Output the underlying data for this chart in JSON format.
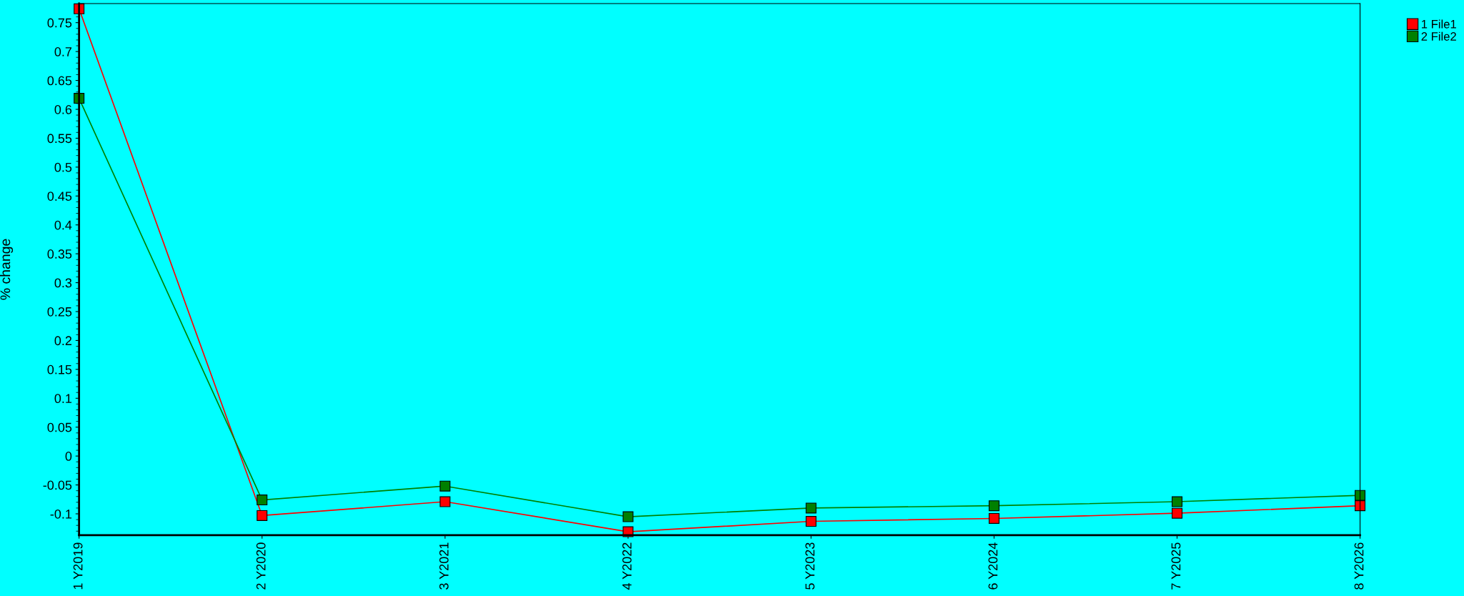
{
  "chart_data": {
    "type": "line",
    "ylabel": "% change",
    "categories": [
      "1 Y2019",
      "2 Y2020",
      "3 Y2021",
      "4 Y2022",
      "5 Y2023",
      "6 Y2024",
      "7 Y2025",
      "8 Y2026"
    ],
    "series": [
      {
        "name": "1 File1",
        "color": "#ff0000",
        "values": [
          0.774,
          -0.103,
          -0.079,
          -0.131,
          -0.113,
          -0.108,
          -0.099,
          -0.086
        ]
      },
      {
        "name": "2 File2",
        "color": "#008000",
        "values": [
          0.619,
          -0.076,
          -0.052,
          -0.105,
          -0.09,
          -0.086,
          -0.079,
          -0.068
        ]
      }
    ],
    "ylim": [
      -0.137,
      0.783
    ],
    "yticks": [
      -0.1,
      -0.05,
      0,
      0.05,
      0.1,
      0.15,
      0.2,
      0.25,
      0.3,
      0.35,
      0.4,
      0.45,
      0.5,
      0.55,
      0.6,
      0.65,
      0.7,
      0.75
    ],
    "grid": false,
    "legend": "top right",
    "marker": "square",
    "line_style": "solid"
  }
}
